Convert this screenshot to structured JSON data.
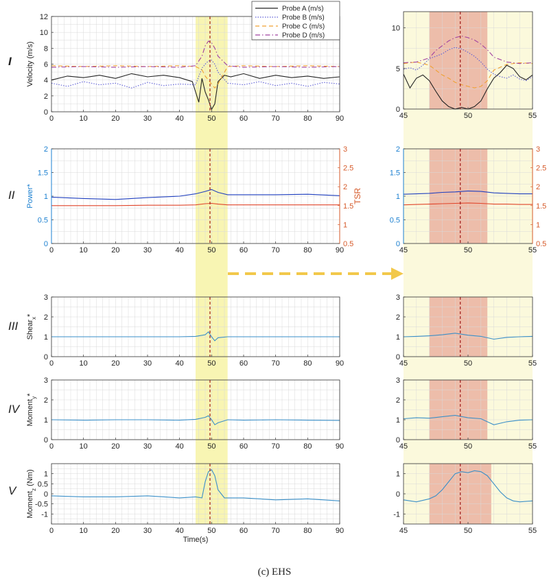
{
  "figure": {
    "caption": "(c) EHS",
    "row_labels": [
      "I",
      "II",
      "III",
      "IV",
      "V"
    ],
    "x_axis_label": "Time(s)"
  },
  "colors": {
    "probe_a": "#222222",
    "probe_b": "#5b5bd6",
    "probe_c": "#f0a030",
    "probe_d": "#a040a0",
    "power": "#1f3fbf",
    "tsr": "#e0442a",
    "signal": "#3a8fc8",
    "highlight_yellow": "#f7f3a6",
    "highlight_red": "#e8a89a",
    "event_line": "#a01818",
    "arrow": "#f2c84b",
    "axis_blue": "#1a7fd0",
    "axis_red": "#d65a2a"
  },
  "chart_data": [
    {
      "id": "row1_full",
      "type": "line",
      "ylabel": "Velocity (m/s)",
      "xlim": [
        0,
        90
      ],
      "ylim": [
        0,
        12
      ],
      "xticks": [
        0,
        10,
        20,
        30,
        40,
        50,
        60,
        70,
        80,
        90
      ],
      "yticks": [
        0,
        2,
        4,
        6,
        8,
        10,
        12
      ],
      "highlight": [
        45,
        55
      ],
      "event_x": 49.5,
      "grid": true,
      "legend_position": "top-right",
      "series": [
        {
          "name": "Probe A (m/s)",
          "style": "solid",
          "x": [
            0,
            5,
            10,
            15,
            20,
            25,
            30,
            35,
            40,
            44,
            46,
            47,
            48,
            49,
            50,
            51,
            52,
            54,
            56,
            60,
            65,
            70,
            75,
            80,
            85,
            90
          ],
          "y": [
            4,
            4.5,
            4.3,
            4.6,
            4.2,
            4.8,
            4.4,
            4.6,
            4.3,
            3.8,
            1.2,
            4.2,
            2.5,
            1.5,
            0.3,
            1.0,
            3.8,
            4.6,
            4.4,
            4.8,
            4.2,
            4.6,
            4.3,
            4.5,
            4.2,
            4.4
          ]
        },
        {
          "name": "Probe B (m/s)",
          "style": "dotted",
          "x": [
            0,
            5,
            10,
            15,
            20,
            25,
            30,
            35,
            40,
            45,
            47,
            48,
            49,
            50,
            51,
            52,
            55,
            60,
            65,
            70,
            75,
            80,
            85,
            90
          ],
          "y": [
            3.6,
            3.2,
            3.8,
            3.4,
            3.6,
            3.0,
            3.7,
            3.3,
            3.5,
            3.4,
            5.5,
            6.0,
            6.4,
            6.5,
            6.0,
            5.0,
            3.6,
            3.4,
            3.8,
            3.3,
            3.6,
            3.2,
            3.7,
            3.5
          ]
        },
        {
          "name": "Probe C (m/s)",
          "style": "dashed",
          "x": [
            0,
            10,
            20,
            30,
            40,
            45,
            47,
            48,
            49,
            50,
            51,
            52,
            55,
            60,
            70,
            80,
            90
          ],
          "y": [
            5.8,
            5.7,
            5.8,
            5.7,
            5.8,
            5.7,
            5.3,
            4.5,
            4.0,
            3.5,
            3.0,
            3.5,
            5.7,
            5.8,
            5.7,
            5.8,
            5.7
          ]
        },
        {
          "name": "Probe D (m/s)",
          "style": "dashdot",
          "x": [
            0,
            10,
            20,
            30,
            40,
            45,
            47,
            48,
            49,
            50,
            51,
            52,
            55,
            60,
            70,
            80,
            90
          ],
          "y": [
            5.6,
            5.7,
            5.6,
            5.7,
            5.6,
            5.8,
            7.0,
            8.3,
            8.9,
            8.7,
            8.0,
            7.0,
            5.8,
            5.6,
            5.7,
            5.6,
            5.7
          ]
        }
      ]
    },
    {
      "id": "row1_zoom",
      "type": "line",
      "xlim": [
        45,
        55
      ],
      "ylim": [
        0,
        12
      ],
      "xticks": [
        45,
        50,
        55
      ],
      "yticks": [
        0,
        5,
        10
      ],
      "highlight": [
        47,
        51.5
      ],
      "event_x": 49.4,
      "grid": true,
      "series": [
        {
          "name": "Probe A (m/s)",
          "style": "solid",
          "x": [
            45,
            45.5,
            46,
            46.5,
            47,
            47.5,
            48,
            48.5,
            49,
            49.5,
            50,
            50.5,
            51,
            51.5,
            52,
            52.5,
            53,
            53.5,
            54,
            54.5,
            55
          ],
          "y": [
            4.3,
            2.6,
            3.8,
            4.2,
            3.5,
            2.2,
            1.0,
            0.3,
            0.0,
            0.2,
            0.0,
            0.3,
            1.0,
            2.5,
            3.8,
            4.5,
            5.4,
            5.0,
            4.0,
            3.6,
            4.2
          ]
        },
        {
          "name": "Probe B (m/s)",
          "style": "dotted",
          "x": [
            45,
            45.5,
            46,
            46.5,
            47,
            47.5,
            48,
            48.5,
            49,
            49.5,
            50,
            50.5,
            51,
            51.5,
            52,
            52.5,
            53,
            53.5,
            54,
            54.5,
            55
          ],
          "y": [
            4.9,
            5.1,
            4.8,
            5.4,
            6.2,
            6.5,
            6.8,
            7.3,
            7.6,
            7.4,
            7.0,
            6.5,
            5.8,
            4.9,
            4.3,
            4.0,
            3.8,
            4.2,
            3.7,
            3.5,
            4.0
          ]
        },
        {
          "name": "Probe C (m/s)",
          "style": "dashed",
          "x": [
            45,
            46,
            47,
            47.5,
            48,
            48.5,
            49,
            49.5,
            50,
            50.5,
            51,
            51.5,
            52,
            53,
            54,
            55
          ],
          "y": [
            5.6,
            5.8,
            5.4,
            4.8,
            4.2,
            3.8,
            3.3,
            3.0,
            2.8,
            2.6,
            2.8,
            3.5,
            4.8,
            5.5,
            5.7,
            5.6
          ]
        },
        {
          "name": "Probe D (m/s)",
          "style": "dashdot",
          "x": [
            45,
            46,
            47,
            47.5,
            48,
            48.5,
            49,
            49.5,
            50,
            50.5,
            51,
            51.5,
            52,
            53,
            54,
            55
          ],
          "y": [
            5.7,
            5.8,
            6.3,
            7.2,
            7.8,
            8.4,
            8.8,
            9.0,
            8.8,
            8.5,
            8.0,
            7.3,
            6.4,
            5.8,
            5.6,
            5.7
          ]
        }
      ]
    },
    {
      "id": "row2_full",
      "type": "line",
      "ylabel": "Power*",
      "ylabel_right": "TSR",
      "xlim": [
        0,
        90
      ],
      "ylim": [
        0,
        2
      ],
      "ylim_right": [
        0.5,
        3
      ],
      "xticks": [
        0,
        10,
        20,
        30,
        40,
        50,
        60,
        70,
        80,
        90
      ],
      "yticks": [
        0,
        0.5,
        1,
        1.5,
        2
      ],
      "yticks_right": [
        0.5,
        1,
        1.5,
        2,
        2.5,
        3
      ],
      "highlight": [
        45,
        55
      ],
      "event_x": 49.5,
      "grid": true,
      "series": [
        {
          "name": "Power*",
          "axis": "left",
          "style": "solid",
          "x": [
            0,
            10,
            20,
            30,
            40,
            45,
            48,
            50,
            52,
            55,
            60,
            70,
            80,
            90
          ],
          "y": [
            0.98,
            0.95,
            0.93,
            0.97,
            1.0,
            1.05,
            1.1,
            1.14,
            1.08,
            1.03,
            1.03,
            1.03,
            1.04,
            1.01
          ]
        },
        {
          "name": "TSR",
          "axis": "right",
          "style": "solid",
          "x": [
            0,
            10,
            20,
            30,
            40,
            45,
            48,
            50,
            52,
            55,
            60,
            70,
            80,
            90
          ],
          "y": [
            1.5,
            1.5,
            1.5,
            1.51,
            1.51,
            1.52,
            1.55,
            1.56,
            1.54,
            1.52,
            1.52,
            1.52,
            1.52,
            1.52
          ]
        }
      ]
    },
    {
      "id": "row2_zoom",
      "type": "line",
      "xlim": [
        45,
        55
      ],
      "ylim": [
        0,
        2
      ],
      "ylim_right": [
        0.5,
        3
      ],
      "xticks": [
        45,
        50,
        55
      ],
      "yticks": [
        0,
        0.5,
        1,
        1.5,
        2
      ],
      "yticks_right": [
        0.5,
        1,
        1.5,
        2,
        2.5,
        3
      ],
      "highlight": [
        47,
        51.5
      ],
      "event_x": 49.4,
      "grid": true,
      "series": [
        {
          "name": "Power*",
          "axis": "left",
          "style": "solid",
          "x": [
            45,
            46,
            47,
            48,
            49,
            50,
            51,
            52,
            53,
            54,
            55
          ],
          "y": [
            1.04,
            1.05,
            1.06,
            1.08,
            1.09,
            1.11,
            1.1,
            1.07,
            1.06,
            1.05,
            1.05
          ]
        },
        {
          "name": "TSR",
          "axis": "right",
          "style": "solid",
          "x": [
            45,
            46,
            47,
            48,
            49,
            50,
            51,
            52,
            53,
            54,
            55
          ],
          "y": [
            1.52,
            1.53,
            1.54,
            1.55,
            1.56,
            1.57,
            1.56,
            1.54,
            1.54,
            1.53,
            1.53
          ]
        }
      ]
    },
    {
      "id": "row3_full",
      "type": "line",
      "ylabel": "Shear_x*",
      "xlim": [
        0,
        90
      ],
      "ylim": [
        0,
        3
      ],
      "xticks": [
        0,
        10,
        20,
        30,
        40,
        50,
        60,
        70,
        80,
        90
      ],
      "yticks": [
        0,
        1,
        2,
        3
      ],
      "highlight": [
        45,
        55
      ],
      "event_x": 49.5,
      "grid": true,
      "series": [
        {
          "name": "Shear_x*",
          "style": "solid",
          "x": [
            0,
            10,
            20,
            30,
            40,
            45,
            48,
            49,
            50,
            51,
            52,
            55,
            60,
            70,
            80,
            90
          ],
          "y": [
            1.0,
            1.0,
            1.0,
            1.0,
            1.0,
            1.02,
            1.1,
            1.25,
            1.0,
            0.8,
            0.95,
            1.0,
            1.0,
            1.0,
            1.0,
            1.0
          ]
        }
      ]
    },
    {
      "id": "row3_zoom",
      "type": "line",
      "xlim": [
        45,
        55
      ],
      "ylim": [
        0,
        3
      ],
      "xticks": [
        45,
        50,
        55
      ],
      "yticks": [
        0,
        1,
        2,
        3
      ],
      "highlight": [
        47,
        51.5
      ],
      "event_x": 49.4,
      "grid": true,
      "series": [
        {
          "name": "Shear_x*",
          "style": "solid",
          "x": [
            45,
            46,
            47,
            48,
            49,
            50,
            51,
            52,
            53,
            54,
            55
          ],
          "y": [
            1.0,
            1.02,
            1.05,
            1.1,
            1.18,
            1.08,
            1.02,
            0.88,
            0.97,
            1.0,
            1.02
          ]
        }
      ]
    },
    {
      "id": "row4_full",
      "type": "line",
      "ylabel": "Moment_y*",
      "xlim": [
        0,
        90
      ],
      "ylim": [
        0,
        3
      ],
      "xticks": [
        0,
        10,
        20,
        30,
        40,
        50,
        60,
        70,
        80,
        90
      ],
      "yticks": [
        0,
        1,
        2,
        3
      ],
      "highlight": [
        45,
        55
      ],
      "event_x": 49.5,
      "grid": true,
      "series": [
        {
          "name": "Moment_y*",
          "style": "solid",
          "x": [
            0,
            10,
            20,
            30,
            40,
            45,
            48,
            49,
            50,
            51,
            52,
            55,
            60,
            70,
            80,
            90
          ],
          "y": [
            1.0,
            0.98,
            1.0,
            1.0,
            0.98,
            1.02,
            1.12,
            1.2,
            1.0,
            0.75,
            0.85,
            1.0,
            0.98,
            1.0,
            0.98,
            0.97
          ]
        }
      ]
    },
    {
      "id": "row4_zoom",
      "type": "line",
      "xlim": [
        45,
        55
      ],
      "ylim": [
        0,
        3
      ],
      "xticks": [
        45,
        50,
        55
      ],
      "yticks": [
        0,
        1,
        2,
        3
      ],
      "highlight": [
        47,
        51.5
      ],
      "event_x": 49.4,
      "grid": true,
      "series": [
        {
          "name": "Moment_y*",
          "style": "solid",
          "x": [
            45,
            46,
            47,
            48,
            49,
            50,
            51,
            52,
            53,
            54,
            55
          ],
          "y": [
            1.05,
            1.1,
            1.08,
            1.15,
            1.22,
            1.1,
            1.05,
            0.75,
            0.9,
            0.98,
            1.0
          ]
        }
      ]
    },
    {
      "id": "row5_full",
      "type": "line",
      "ylabel": "Moment_z (Nm)",
      "xlabel": "Time(s)",
      "xlim": [
        0,
        90
      ],
      "ylim": [
        -1.5,
        1.5
      ],
      "xticks": [
        0,
        10,
        20,
        30,
        40,
        50,
        60,
        70,
        80,
        90
      ],
      "yticks": [
        -1,
        -0.5,
        0,
        0.5,
        1
      ],
      "highlight": [
        45,
        55
      ],
      "event_x": 49.5,
      "grid": true,
      "series": [
        {
          "name": "Moment_z (Nm)",
          "style": "solid",
          "x": [
            0,
            10,
            20,
            30,
            40,
            45,
            47,
            48,
            49,
            50,
            51,
            52,
            54,
            60,
            70,
            80,
            90
          ],
          "y": [
            -0.1,
            -0.15,
            -0.15,
            -0.1,
            -0.2,
            -0.15,
            -0.2,
            0.6,
            1.1,
            1.2,
            0.9,
            0.2,
            -0.2,
            -0.2,
            -0.3,
            -0.25,
            -0.35
          ]
        }
      ]
    },
    {
      "id": "row5_zoom",
      "type": "line",
      "xlim": [
        45,
        55
      ],
      "ylim": [
        -1.5,
        1.5
      ],
      "xticks": [
        45,
        50,
        55
      ],
      "yticks": [
        -1,
        0,
        1
      ],
      "highlight": [
        47,
        51.8
      ],
      "event_x": 49.4,
      "grid": true,
      "series": [
        {
          "name": "Moment_z (Nm)",
          "style": "solid",
          "x": [
            45,
            46,
            47,
            47.5,
            48,
            48.5,
            49,
            49.5,
            50,
            50.5,
            51,
            51.5,
            52,
            52.5,
            53,
            53.5,
            54,
            55
          ],
          "y": [
            -0.3,
            -0.4,
            -0.25,
            -0.1,
            0.2,
            0.6,
            1.0,
            1.1,
            1.05,
            1.15,
            1.1,
            0.9,
            0.5,
            0.1,
            -0.2,
            -0.35,
            -0.4,
            -0.35
          ]
        }
      ]
    }
  ]
}
